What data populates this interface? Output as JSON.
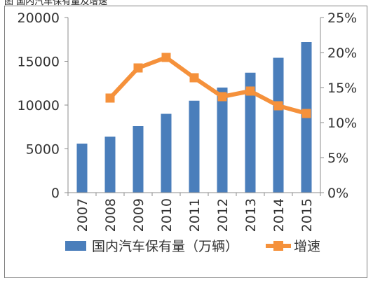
{
  "caption": "图  国内汽车保有量及增速",
  "chart_data": {
    "type": "bar",
    "categories": [
      "2007",
      "2008",
      "2009",
      "2010",
      "2011",
      "2012",
      "2013",
      "2014",
      "2015"
    ],
    "series": [
      {
        "name": "国内汽车保有量（万辆）",
        "kind": "bar",
        "axis": "left",
        "color": "#4a7ebb",
        "values": [
          5600,
          6400,
          7600,
          9000,
          10500,
          12000,
          13700,
          15400,
          17200
        ]
      },
      {
        "name": "增速",
        "kind": "line",
        "axis": "right",
        "color": "#f5913b",
        "values": [
          null,
          13.5,
          17.8,
          19.3,
          16.4,
          13.7,
          14.5,
          12.4,
          11.3
        ]
      }
    ],
    "y_left": {
      "min": 0,
      "max": 20000,
      "ticks": [
        "0",
        "5000",
        "10000",
        "15000",
        "20000"
      ]
    },
    "y_right": {
      "min": 0,
      "max": 25,
      "ticks": [
        "0%",
        "5%",
        "10%",
        "15%",
        "20%",
        "25%"
      ]
    },
    "grid": false,
    "legend": "bottom"
  }
}
